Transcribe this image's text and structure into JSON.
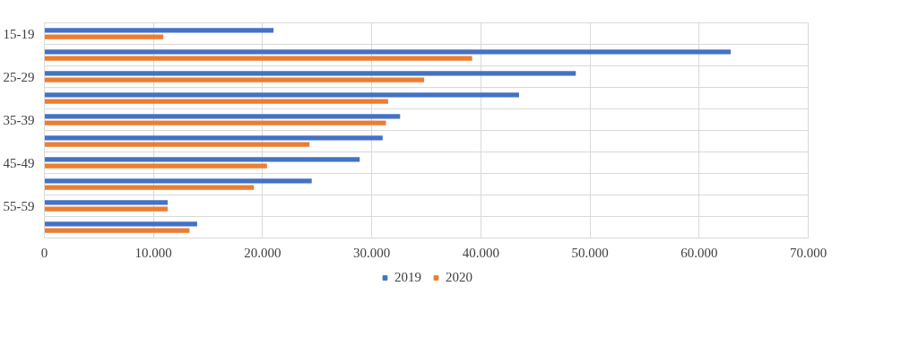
{
  "chart_data": {
    "type": "bar",
    "orientation": "horizontal",
    "categories": [
      "15-19",
      null,
      "25-29",
      null,
      "35-39",
      null,
      "45-49",
      null,
      "55-59",
      null
    ],
    "series": [
      {
        "name": "2019",
        "color": "#4472c4",
        "values": [
          21000,
          62900,
          48700,
          43500,
          32600,
          31000,
          28900,
          24500,
          11300,
          14000
        ]
      },
      {
        "name": "2020",
        "color": "#ed7d31",
        "values": [
          10900,
          39200,
          34800,
          31500,
          31300,
          24300,
          20400,
          19200,
          11300,
          13300
        ]
      }
    ],
    "xlim": [
      0,
      70000
    ],
    "xticks": [
      0,
      {
        "value": 10000,
        "label": "10.000"
      },
      {
        "value": 20000,
        "label": "20.000"
      },
      {
        "value": 30000,
        "label": "30.000"
      },
      {
        "value": 40000,
        "label": "40.000"
      },
      {
        "value": 50000,
        "label": "50.000"
      },
      {
        "value": 60000,
        "label": "60.000"
      },
      {
        "value": 70000,
        "label": "70.000"
      }
    ],
    "grid": true,
    "legend": "bottom"
  }
}
